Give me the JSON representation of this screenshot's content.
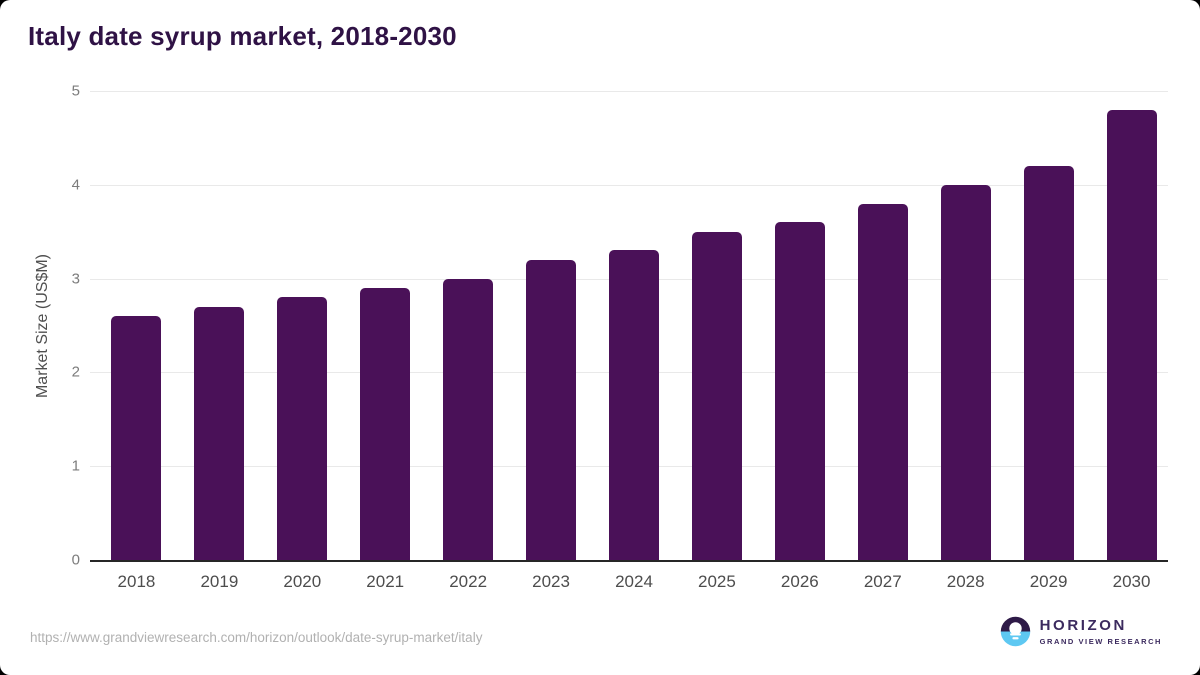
{
  "chart_data": {
    "type": "bar",
    "title": "Italy date syrup market, 2018-2030",
    "categories": [
      "2018",
      "2019",
      "2020",
      "2021",
      "2022",
      "2023",
      "2024",
      "2025",
      "2026",
      "2027",
      "2028",
      "2029",
      "2030"
    ],
    "values": [
      2.6,
      2.7,
      2.8,
      2.9,
      3.0,
      3.2,
      3.3,
      3.5,
      3.6,
      3.8,
      4.0,
      4.2,
      4.8
    ],
    "xlabel": "",
    "ylabel": "Market Size (US$M)",
    "ylim": [
      0,
      5
    ],
    "yticks": [
      0,
      1,
      2,
      3,
      4,
      5
    ],
    "grid": true,
    "legend": false,
    "bar_color": "#4a1158",
    "title_color": "#2f1245",
    "gridline_color": "#e9e9e9",
    "axis_line_color": "#262626"
  },
  "footer": {
    "source_url": "https://www.grandviewresearch.com/horizon/outlook/date-syrup-market/italy",
    "logo": {
      "brand": "HORIZON",
      "sub_brand": "GRAND VIEW RESEARCH",
      "icon": "horizon-sun-over-water-icon",
      "purple": "#2e1a47",
      "blue": "#5ec8f2"
    }
  }
}
